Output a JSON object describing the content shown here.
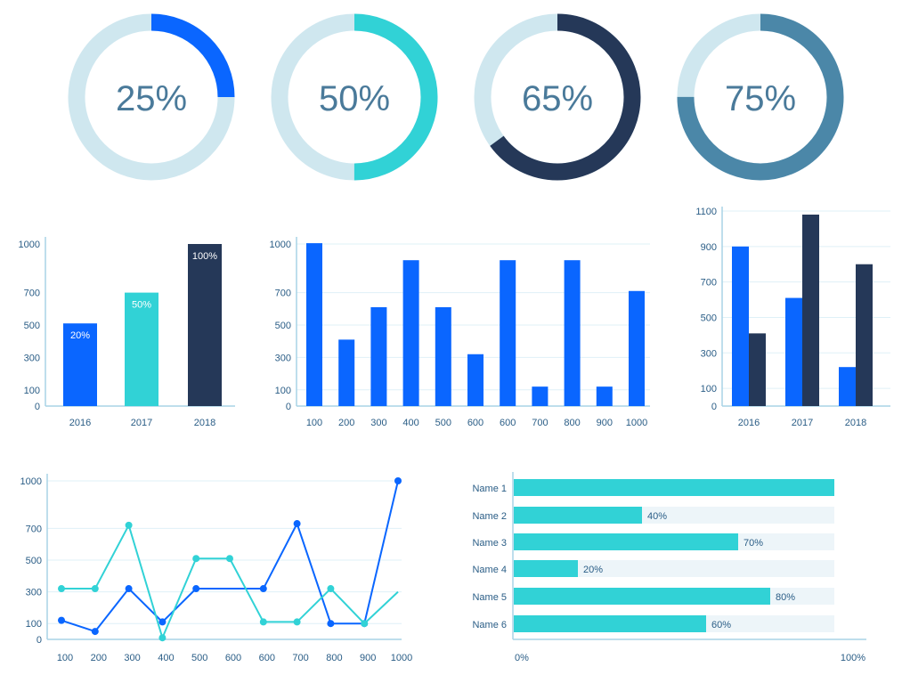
{
  "colors": {
    "track": "#cfe7ef",
    "blue": "#0a66ff",
    "teal": "#31d2d6",
    "navy": "#253858",
    "steel": "#4b87a8",
    "axis": "#a8d4e6",
    "grid": "#dff0f7",
    "text": "#2a5d86",
    "hbar_track": "#edf5f9"
  },
  "chart_data": [
    {
      "type": "donut",
      "value": 25,
      "label": "25%",
      "color": "#0a66ff"
    },
    {
      "type": "donut",
      "value": 50,
      "label": "50%",
      "color": "#31d2d6"
    },
    {
      "type": "donut",
      "value": 65,
      "label": "65%",
      "color": "#253858"
    },
    {
      "type": "donut",
      "value": 75,
      "label": "75%",
      "color": "#4b87a8"
    },
    {
      "type": "bar",
      "categories": [
        "2016",
        "2017",
        "2018"
      ],
      "values": [
        510,
        700,
        1000
      ],
      "bar_labels": [
        "20%",
        "50%",
        "100%"
      ],
      "colors": [
        "#0a66ff",
        "#31d2d6",
        "#253858"
      ],
      "y_ticks": [
        0,
        100,
        300,
        500,
        700,
        1000
      ],
      "grid": false
    },
    {
      "type": "bar",
      "categories": [
        "100",
        "200",
        "300",
        "400",
        "500",
        "600",
        "600",
        "700",
        "800",
        "900",
        "1000"
      ],
      "values": [
        1005,
        410,
        610,
        900,
        610,
        320,
        900,
        120,
        900,
        120,
        710
      ],
      "color": "#0a66ff",
      "y_ticks": [
        0,
        100,
        300,
        500,
        700,
        1000
      ],
      "grid": true
    },
    {
      "type": "bar",
      "categories": [
        "2016",
        "2017",
        "2018"
      ],
      "series": [
        {
          "values": [
            900,
            610,
            220
          ],
          "color": "#0a66ff"
        },
        {
          "values": [
            410,
            1080,
            800
          ],
          "color": "#253858"
        }
      ],
      "y_ticks": [
        0,
        100,
        300,
        500,
        700,
        900,
        1100
      ],
      "grid": true
    },
    {
      "type": "line",
      "x_ticks": [
        "100",
        "200",
        "300",
        "400",
        "500",
        "600",
        "600",
        "700",
        "800",
        "900",
        "1000"
      ],
      "y_ticks": [
        0,
        100,
        300,
        500,
        700,
        1000
      ],
      "series": [
        {
          "color": "#0a66ff",
          "values": [
            120,
            50,
            320,
            110,
            320,
            320,
            320,
            730,
            100,
            100,
            1000
          ],
          "markers": [
            true,
            true,
            true,
            true,
            true,
            false,
            true,
            true,
            true,
            true,
            true
          ]
        },
        {
          "color": "#31d2d6",
          "values": [
            320,
            320,
            720,
            10,
            510,
            510,
            110,
            110,
            320,
            100,
            300
          ],
          "markers": [
            true,
            true,
            true,
            true,
            true,
            true,
            true,
            true,
            true,
            true,
            false
          ]
        }
      ],
      "grid": true
    },
    {
      "type": "bar",
      "orientation": "horizontal",
      "categories": [
        "Name 1",
        "Name 2",
        "Name 3",
        "Name 4",
        "Name 5",
        "Name 6"
      ],
      "values": [
        100,
        40,
        70,
        20,
        80,
        60
      ],
      "value_labels": [
        "",
        "40%",
        "70%",
        "20%",
        "80%",
        "60%"
      ],
      "color": "#31d2d6",
      "x_tick_labels": [
        "0%",
        "100%"
      ]
    }
  ]
}
